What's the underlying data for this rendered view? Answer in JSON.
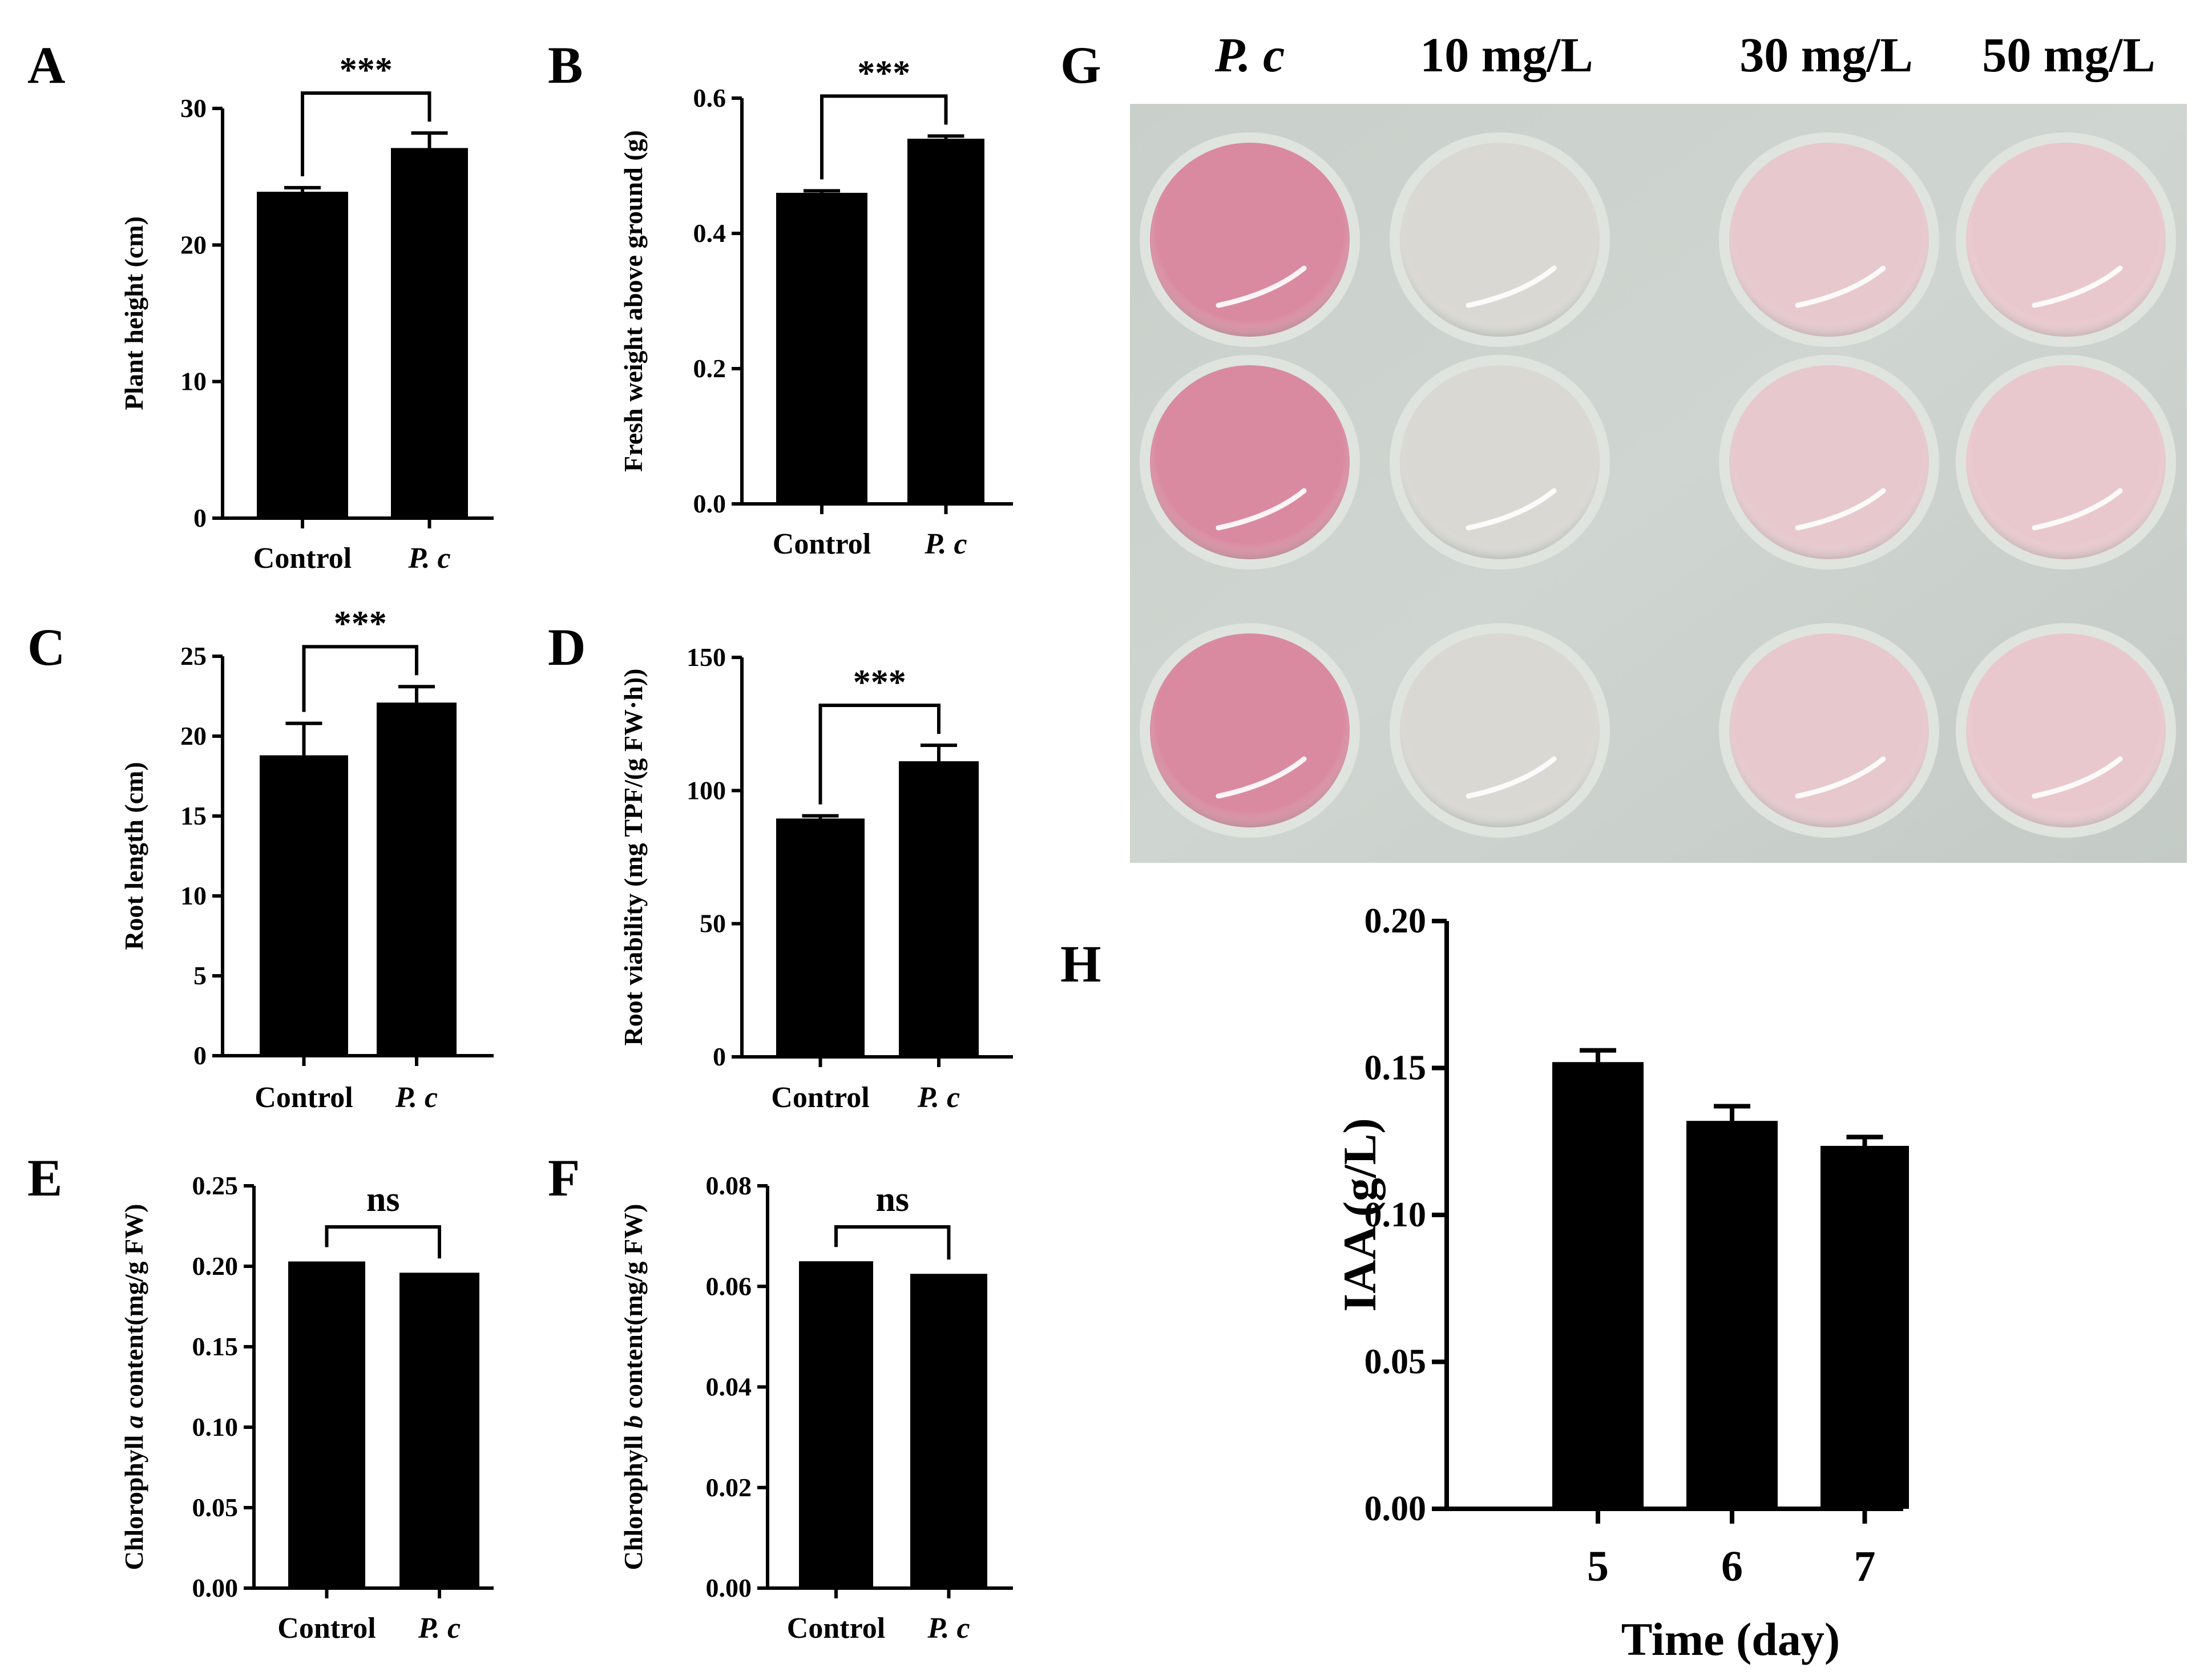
{
  "panel_letters": [
    "A",
    "B",
    "C",
    "D",
    "E",
    "F",
    "G",
    "H"
  ],
  "chart_data": [
    {
      "id": "A",
      "type": "bar",
      "categories": [
        "Control",
        "P. c"
      ],
      "values": [
        23.9,
        27.1
      ],
      "errors": [
        0.3,
        1.1
      ],
      "ylabel": "Plant height (cm)",
      "ylim": [
        0,
        30
      ],
      "yticks": [
        0,
        10,
        20,
        30
      ],
      "significance": "***"
    },
    {
      "id": "B",
      "type": "bar",
      "categories": [
        "Control",
        "P. c"
      ],
      "values": [
        0.46,
        0.54
      ],
      "errors": [
        0.003,
        0.004
      ],
      "ylabel": "Fresh weight above ground (g)",
      "ylim": [
        0,
        0.6
      ],
      "yticks": [
        "0.0",
        "0.2",
        "0.4",
        "0.6"
      ],
      "significance": "***"
    },
    {
      "id": "C",
      "type": "bar",
      "categories": [
        "Control",
        "P. c"
      ],
      "values": [
        18.8,
        22.1
      ],
      "errors": [
        2.0,
        1.0
      ],
      "ylabel": "Root length (cm)",
      "ylim": [
        0,
        25
      ],
      "yticks": [
        0,
        5,
        10,
        15,
        20,
        25
      ],
      "significance": "***"
    },
    {
      "id": "D",
      "type": "bar",
      "categories": [
        "Control",
        "P. c"
      ],
      "values": [
        89.5,
        111
      ],
      "errors": [
        1.0,
        6.0
      ],
      "ylabel": "Root viability (mg TPF/(g FW·h))",
      "ylim": [
        0,
        150
      ],
      "yticks": [
        0,
        50,
        100,
        150
      ],
      "significance": "***"
    },
    {
      "id": "E",
      "type": "bar",
      "categories": [
        "Control",
        "P. c"
      ],
      "values": [
        0.203,
        0.196
      ],
      "errors": [
        0,
        0
      ],
      "ylabel_parts": [
        "Chlorophyll ",
        "a",
        " content(mg/g FW)"
      ],
      "ylim": [
        0,
        0.25
      ],
      "yticks": [
        "0.00",
        "0.05",
        "0.10",
        "0.15",
        "0.20",
        "0.25"
      ],
      "significance": "ns"
    },
    {
      "id": "F",
      "type": "bar",
      "categories": [
        "Control",
        "P. c"
      ],
      "values": [
        0.065,
        0.0625
      ],
      "errors": [
        0,
        0
      ],
      "ylabel_parts": [
        "Chlorophyll ",
        "b",
        " content(mg/g FW)"
      ],
      "ylim": [
        0,
        0.08
      ],
      "yticks": [
        "0.00",
        "0.02",
        "0.04",
        "0.06",
        "0.08"
      ],
      "significance": "ns"
    },
    {
      "id": "H",
      "type": "bar",
      "categories": [
        "5",
        "6",
        "7"
      ],
      "values": [
        0.152,
        0.132,
        0.1235
      ],
      "errors": [
        0.004,
        0.005,
        0.003
      ],
      "xlabel": "Time (day)",
      "ylabel": "IAA (g/L)",
      "ylim": [
        0,
        0.2
      ],
      "yticks": [
        "0.00",
        "0.05",
        "0.10",
        "0.15",
        "0.20"
      ]
    }
  ],
  "photo_G": {
    "columns": [
      "P. c",
      "10 mg/L",
      "30 mg/L",
      "50 mg/L"
    ],
    "rows": 3,
    "well_colors": [
      "#d98aa0",
      "#d9d8d3",
      "#e7c8cd",
      "#e9c8cd"
    ]
  }
}
